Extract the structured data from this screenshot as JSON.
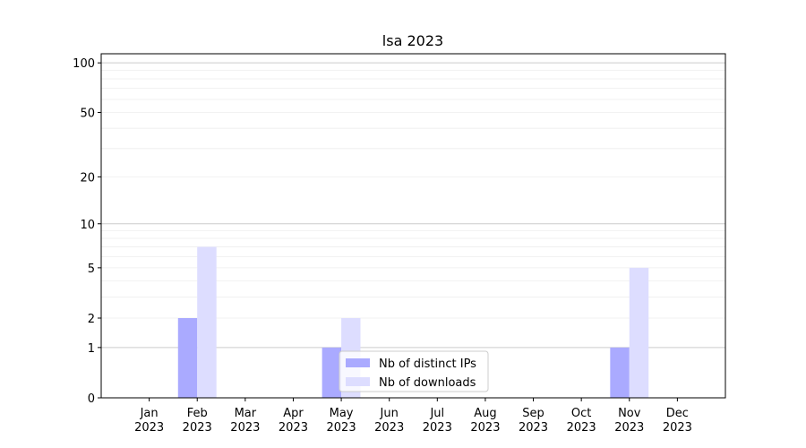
{
  "chart_data": {
    "type": "bar",
    "title": "lsa 2023",
    "categories": [
      "Jan\n2023",
      "Feb\n2023",
      "Mar\n2023",
      "Apr\n2023",
      "May\n2023",
      "Jun\n2023",
      "Jul\n2023",
      "Aug\n2023",
      "Sep\n2023",
      "Oct\n2023",
      "Nov\n2023",
      "Dec\n2023"
    ],
    "series": [
      {
        "name": "Nb of distinct IPs",
        "color": "#aaaaff",
        "values": [
          0,
          2,
          0,
          0,
          1,
          0,
          0,
          0,
          0,
          0,
          1,
          0
        ]
      },
      {
        "name": "Nb of downloads",
        "color": "#ddddff",
        "values": [
          0,
          7,
          0,
          0,
          2,
          0,
          0,
          0,
          0,
          0,
          5,
          0
        ]
      }
    ],
    "yscale": "log1p",
    "ylim": [
      0,
      113.5
    ],
    "yticks": [
      0,
      1,
      2,
      5,
      10,
      20,
      50,
      100
    ],
    "major_grid": [
      1,
      10,
      100
    ],
    "minor_grid": [
      2,
      3,
      4,
      5,
      6,
      7,
      8,
      9,
      20,
      30,
      40,
      50,
      60,
      70,
      80,
      90
    ],
    "legend": "lower center"
  }
}
